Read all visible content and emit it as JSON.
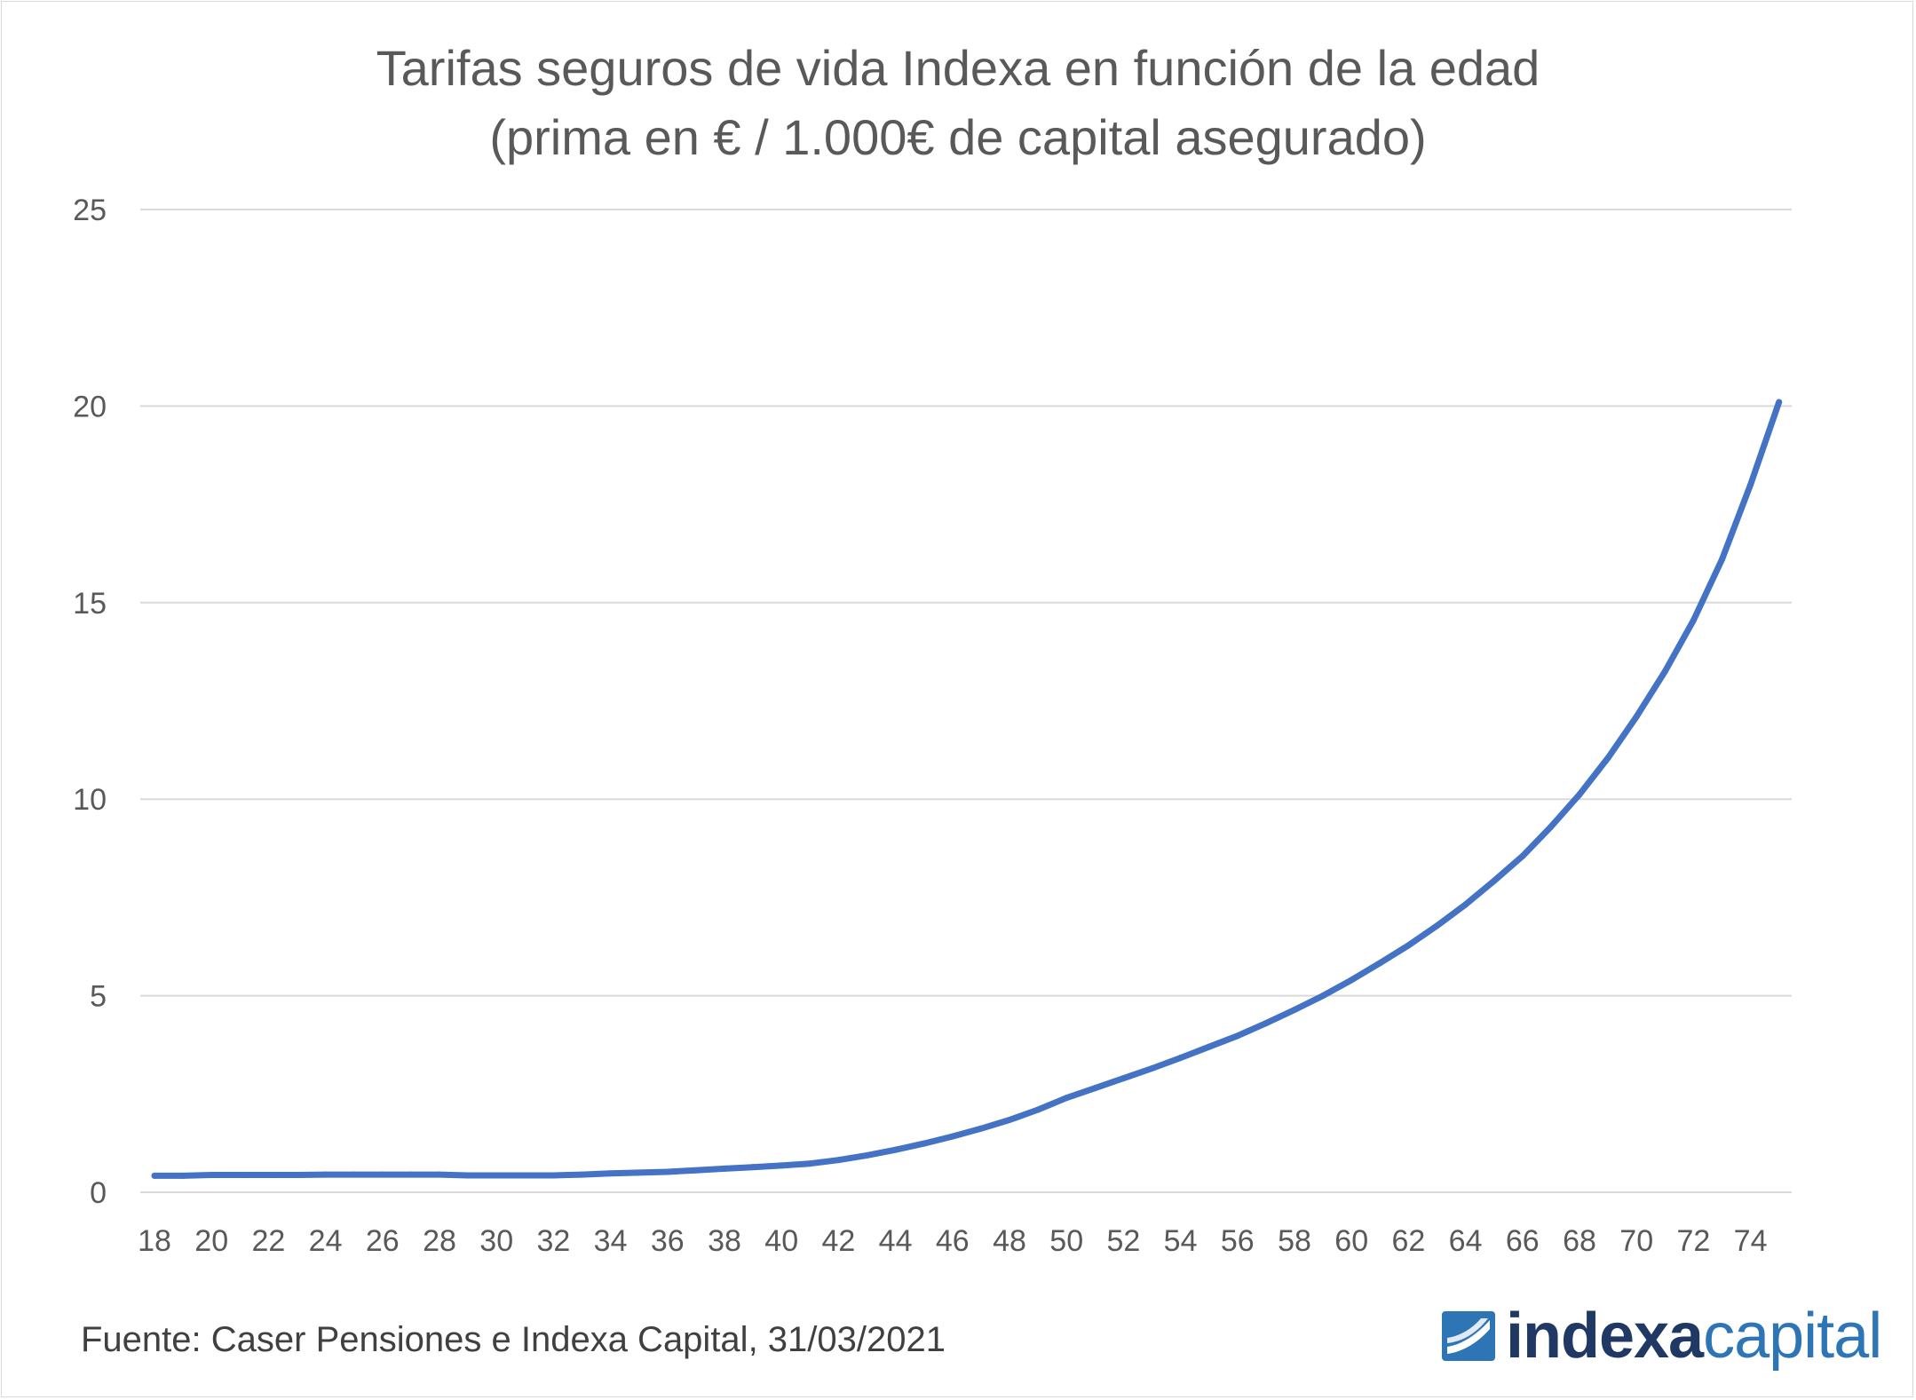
{
  "chart_data": {
    "type": "line",
    "title": "Tarifas seguros de vida Indexa en función de la edad",
    "subtitle": "(prima en € / 1.000€ de capital asegurado)",
    "xlabel": "",
    "ylabel": "",
    "x_ticks": [
      "18",
      "20",
      "22",
      "24",
      "26",
      "28",
      "30",
      "32",
      "34",
      "36",
      "38",
      "40",
      "42",
      "44",
      "46",
      "48",
      "50",
      "52",
      "54",
      "56",
      "58",
      "60",
      "62",
      "64",
      "66",
      "68",
      "70",
      "72",
      "74"
    ],
    "y_ticks": [
      "0",
      "5",
      "10",
      "15",
      "20",
      "25"
    ],
    "ylim": [
      0,
      25
    ],
    "grid": true,
    "series": [
      {
        "color": "#4472c4",
        "x": [
          18,
          19,
          20,
          21,
          22,
          23,
          24,
          25,
          26,
          27,
          28,
          29,
          30,
          31,
          32,
          33,
          34,
          35,
          36,
          37,
          38,
          39,
          40,
          41,
          42,
          43,
          44,
          45,
          46,
          47,
          48,
          49,
          50,
          51,
          52,
          53,
          54,
          55,
          56,
          57,
          58,
          59,
          60,
          61,
          62,
          63,
          64,
          65,
          66,
          67,
          68,
          69,
          70,
          71,
          72,
          73,
          74,
          75
        ],
        "y": [
          0.42,
          0.42,
          0.44,
          0.44,
          0.44,
          0.44,
          0.45,
          0.45,
          0.45,
          0.45,
          0.45,
          0.43,
          0.43,
          0.43,
          0.43,
          0.45,
          0.48,
          0.5,
          0.52,
          0.56,
          0.6,
          0.64,
          0.68,
          0.73,
          0.82,
          0.94,
          1.08,
          1.24,
          1.42,
          1.62,
          1.84,
          2.1,
          2.4,
          2.65,
          2.9,
          3.15,
          3.42,
          3.7,
          3.98,
          4.3,
          4.64,
          5.0,
          5.4,
          5.83,
          6.28,
          6.78,
          7.32,
          7.92,
          8.55,
          9.3,
          10.12,
          11.05,
          12.1,
          13.25,
          14.55,
          16.1,
          18.0,
          20.1
        ]
      }
    ]
  },
  "source_text": "Fuente: Caser Pensiones e Indexa Capital, 31/03/2021",
  "logo": {
    "text_bold": "indexa",
    "text_light": "capital",
    "color_bold": "#1f3864",
    "color_light": "#2e75b6"
  }
}
